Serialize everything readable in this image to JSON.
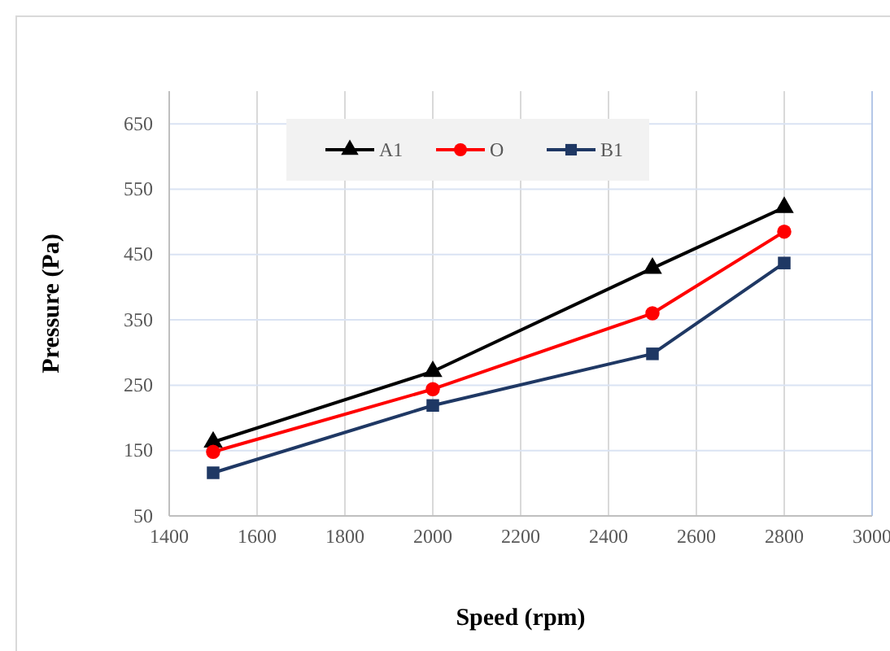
{
  "chart_data": {
    "type": "line",
    "xlabel": "Speed (rpm)",
    "ylabel": "Pressure (Pa)",
    "x": [
      1500,
      2000,
      2500,
      2800
    ],
    "series": [
      {
        "name": "A1",
        "color": "#000000",
        "marker": "triangle",
        "values": [
          163,
          271,
          429,
          522
        ]
      },
      {
        "name": "O",
        "color": "#ff0000",
        "marker": "circle",
        "values": [
          148,
          244,
          360,
          485
        ]
      },
      {
        "name": "B1",
        "color": "#1f3864",
        "marker": "square",
        "values": [
          116,
          219,
          298,
          437
        ]
      }
    ],
    "xlim": [
      1400,
      3000
    ],
    "xticks": [
      1400,
      1600,
      1800,
      2000,
      2200,
      2400,
      2600,
      2800,
      3000
    ],
    "ylim": [
      50,
      700
    ],
    "yticks": [
      50,
      150,
      250,
      350,
      450,
      550,
      650
    ],
    "grid": true,
    "legend": "top",
    "line_style": "solid"
  }
}
